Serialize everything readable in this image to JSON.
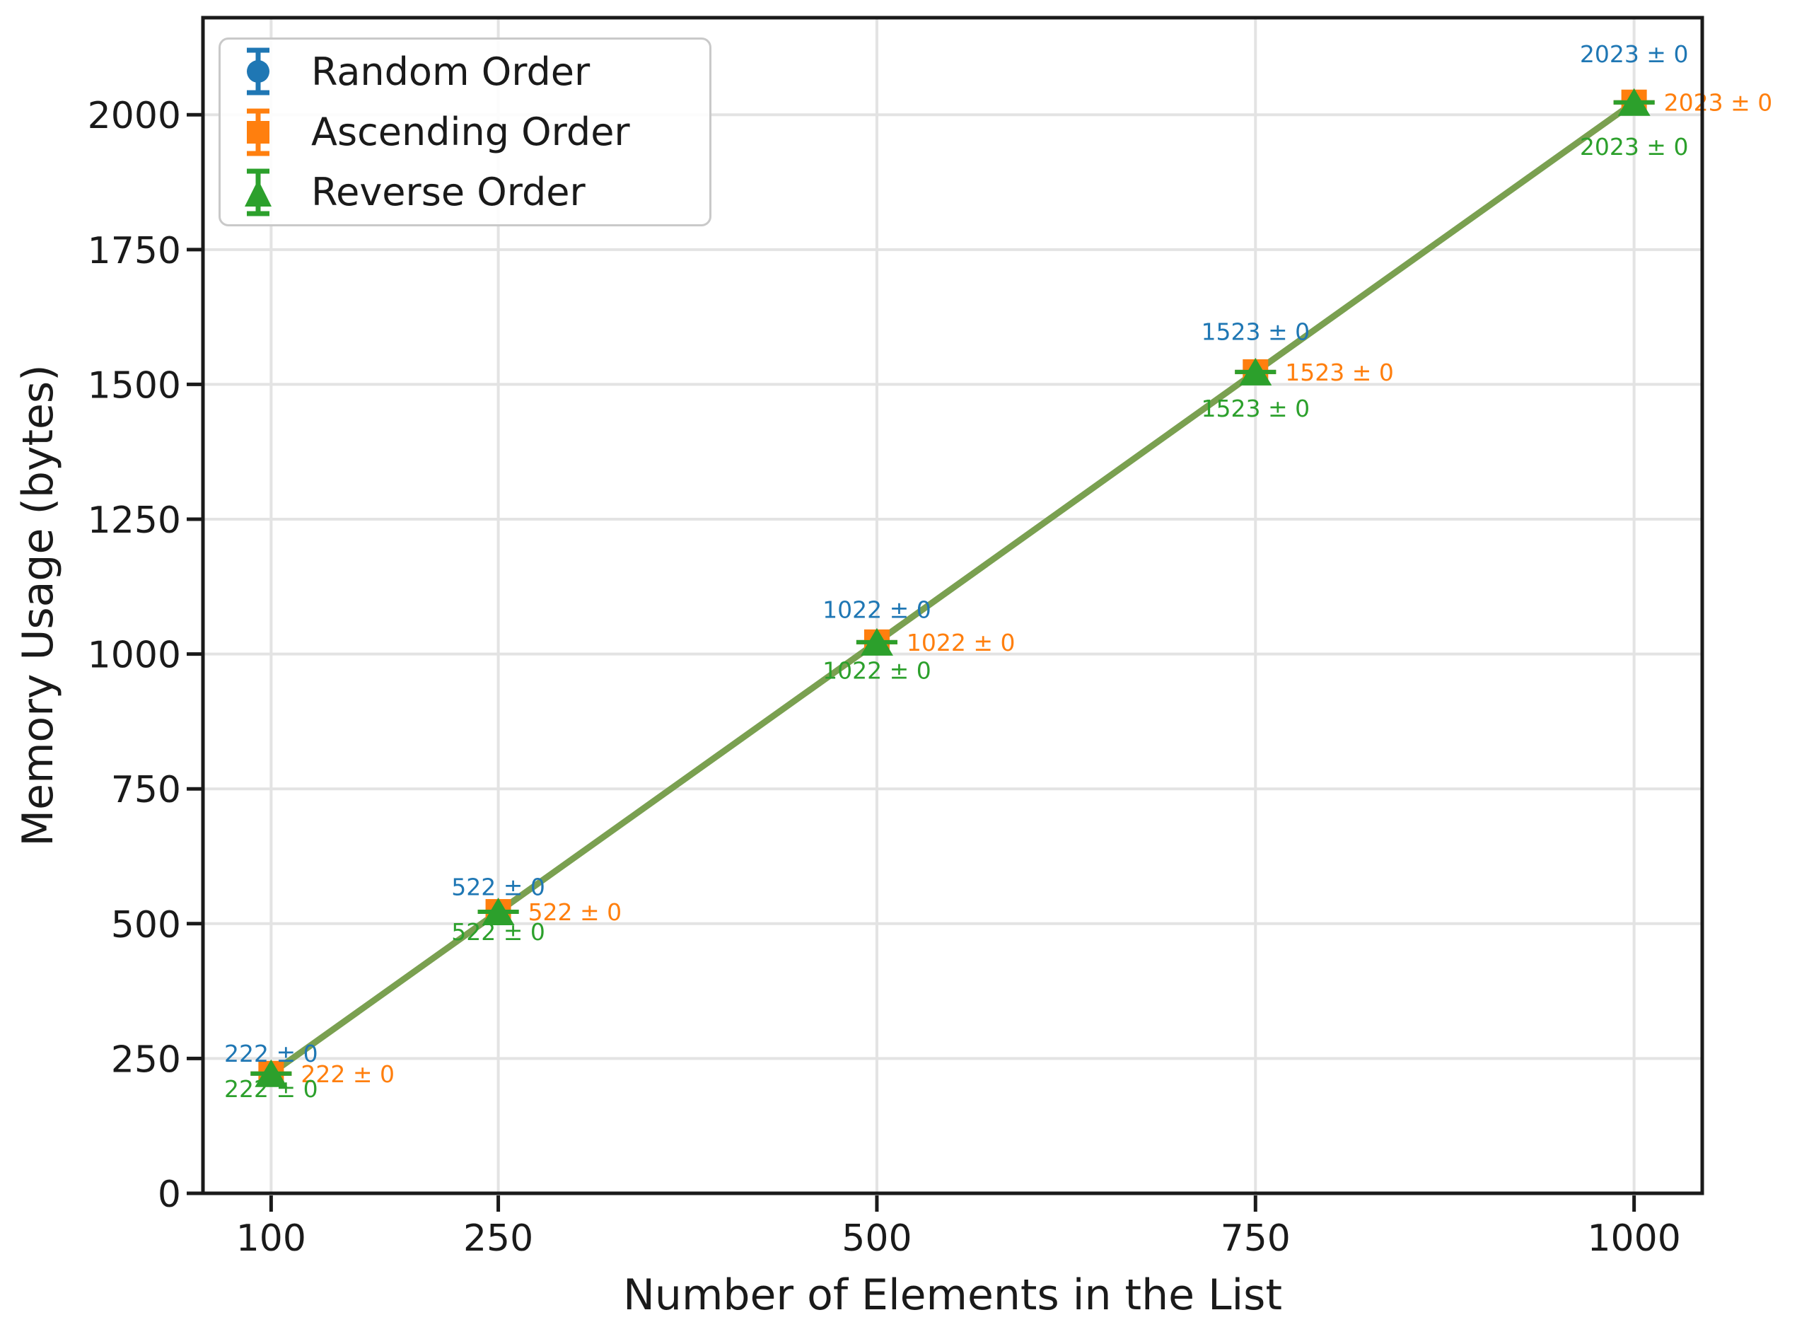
{
  "chart_data": {
    "type": "line",
    "title": "",
    "xlabel": "Number of Elements in the List",
    "ylabel": "Memory Usage (bytes)",
    "x": [
      100,
      250,
      500,
      750,
      1000
    ],
    "series": [
      {
        "name": "Random Order",
        "marker": "circle",
        "color": "#1f77b4",
        "values": [
          222,
          522,
          1022,
          1523,
          2023
        ],
        "errors": [
          0,
          0,
          0,
          0,
          0
        ],
        "point_labels": [
          "222 ± 0",
          "522 ± 0",
          "1022 ± 0",
          "1523 ± 0",
          "2023 ± 0"
        ]
      },
      {
        "name": "Ascending Order",
        "marker": "square",
        "color": "#ff7f0e",
        "values": [
          222,
          522,
          1022,
          1523,
          2023
        ],
        "errors": [
          0,
          0,
          0,
          0,
          0
        ],
        "point_labels": [
          "222 ± 0",
          "522 ± 0",
          "1022 ± 0",
          "1523 ± 0",
          "2023 ± 0"
        ]
      },
      {
        "name": "Reverse Order",
        "marker": "triangle",
        "color": "#2ca02c",
        "values": [
          222,
          522,
          1022,
          1523,
          2023
        ],
        "errors": [
          0,
          0,
          0,
          0,
          0
        ],
        "point_labels": [
          "222 ± 0",
          "522 ± 0",
          "1022 ± 0",
          "1523 ± 0",
          "2023 ± 0"
        ]
      }
    ],
    "composite_line_color": "#7aa050",
    "xticks": [
      100,
      250,
      500,
      750,
      1000
    ],
    "xtick_labels": [
      "100",
      "250",
      "500",
      "750",
      "1000"
    ],
    "yticks": [
      0,
      250,
      500,
      750,
      1000,
      1250,
      1500,
      1750,
      2000
    ],
    "ytick_labels": [
      "0",
      "250",
      "500",
      "750",
      "1000",
      "1250",
      "1500",
      "1750",
      "2000"
    ],
    "xlim": [
      55,
      1045
    ],
    "ylim": [
      0,
      2180
    ],
    "grid": true,
    "grid_color": "#e3e3e3",
    "axis_color": "#1a1a1a",
    "legend": {
      "position": "upper left",
      "border_color": "#c9c9c9"
    }
  }
}
